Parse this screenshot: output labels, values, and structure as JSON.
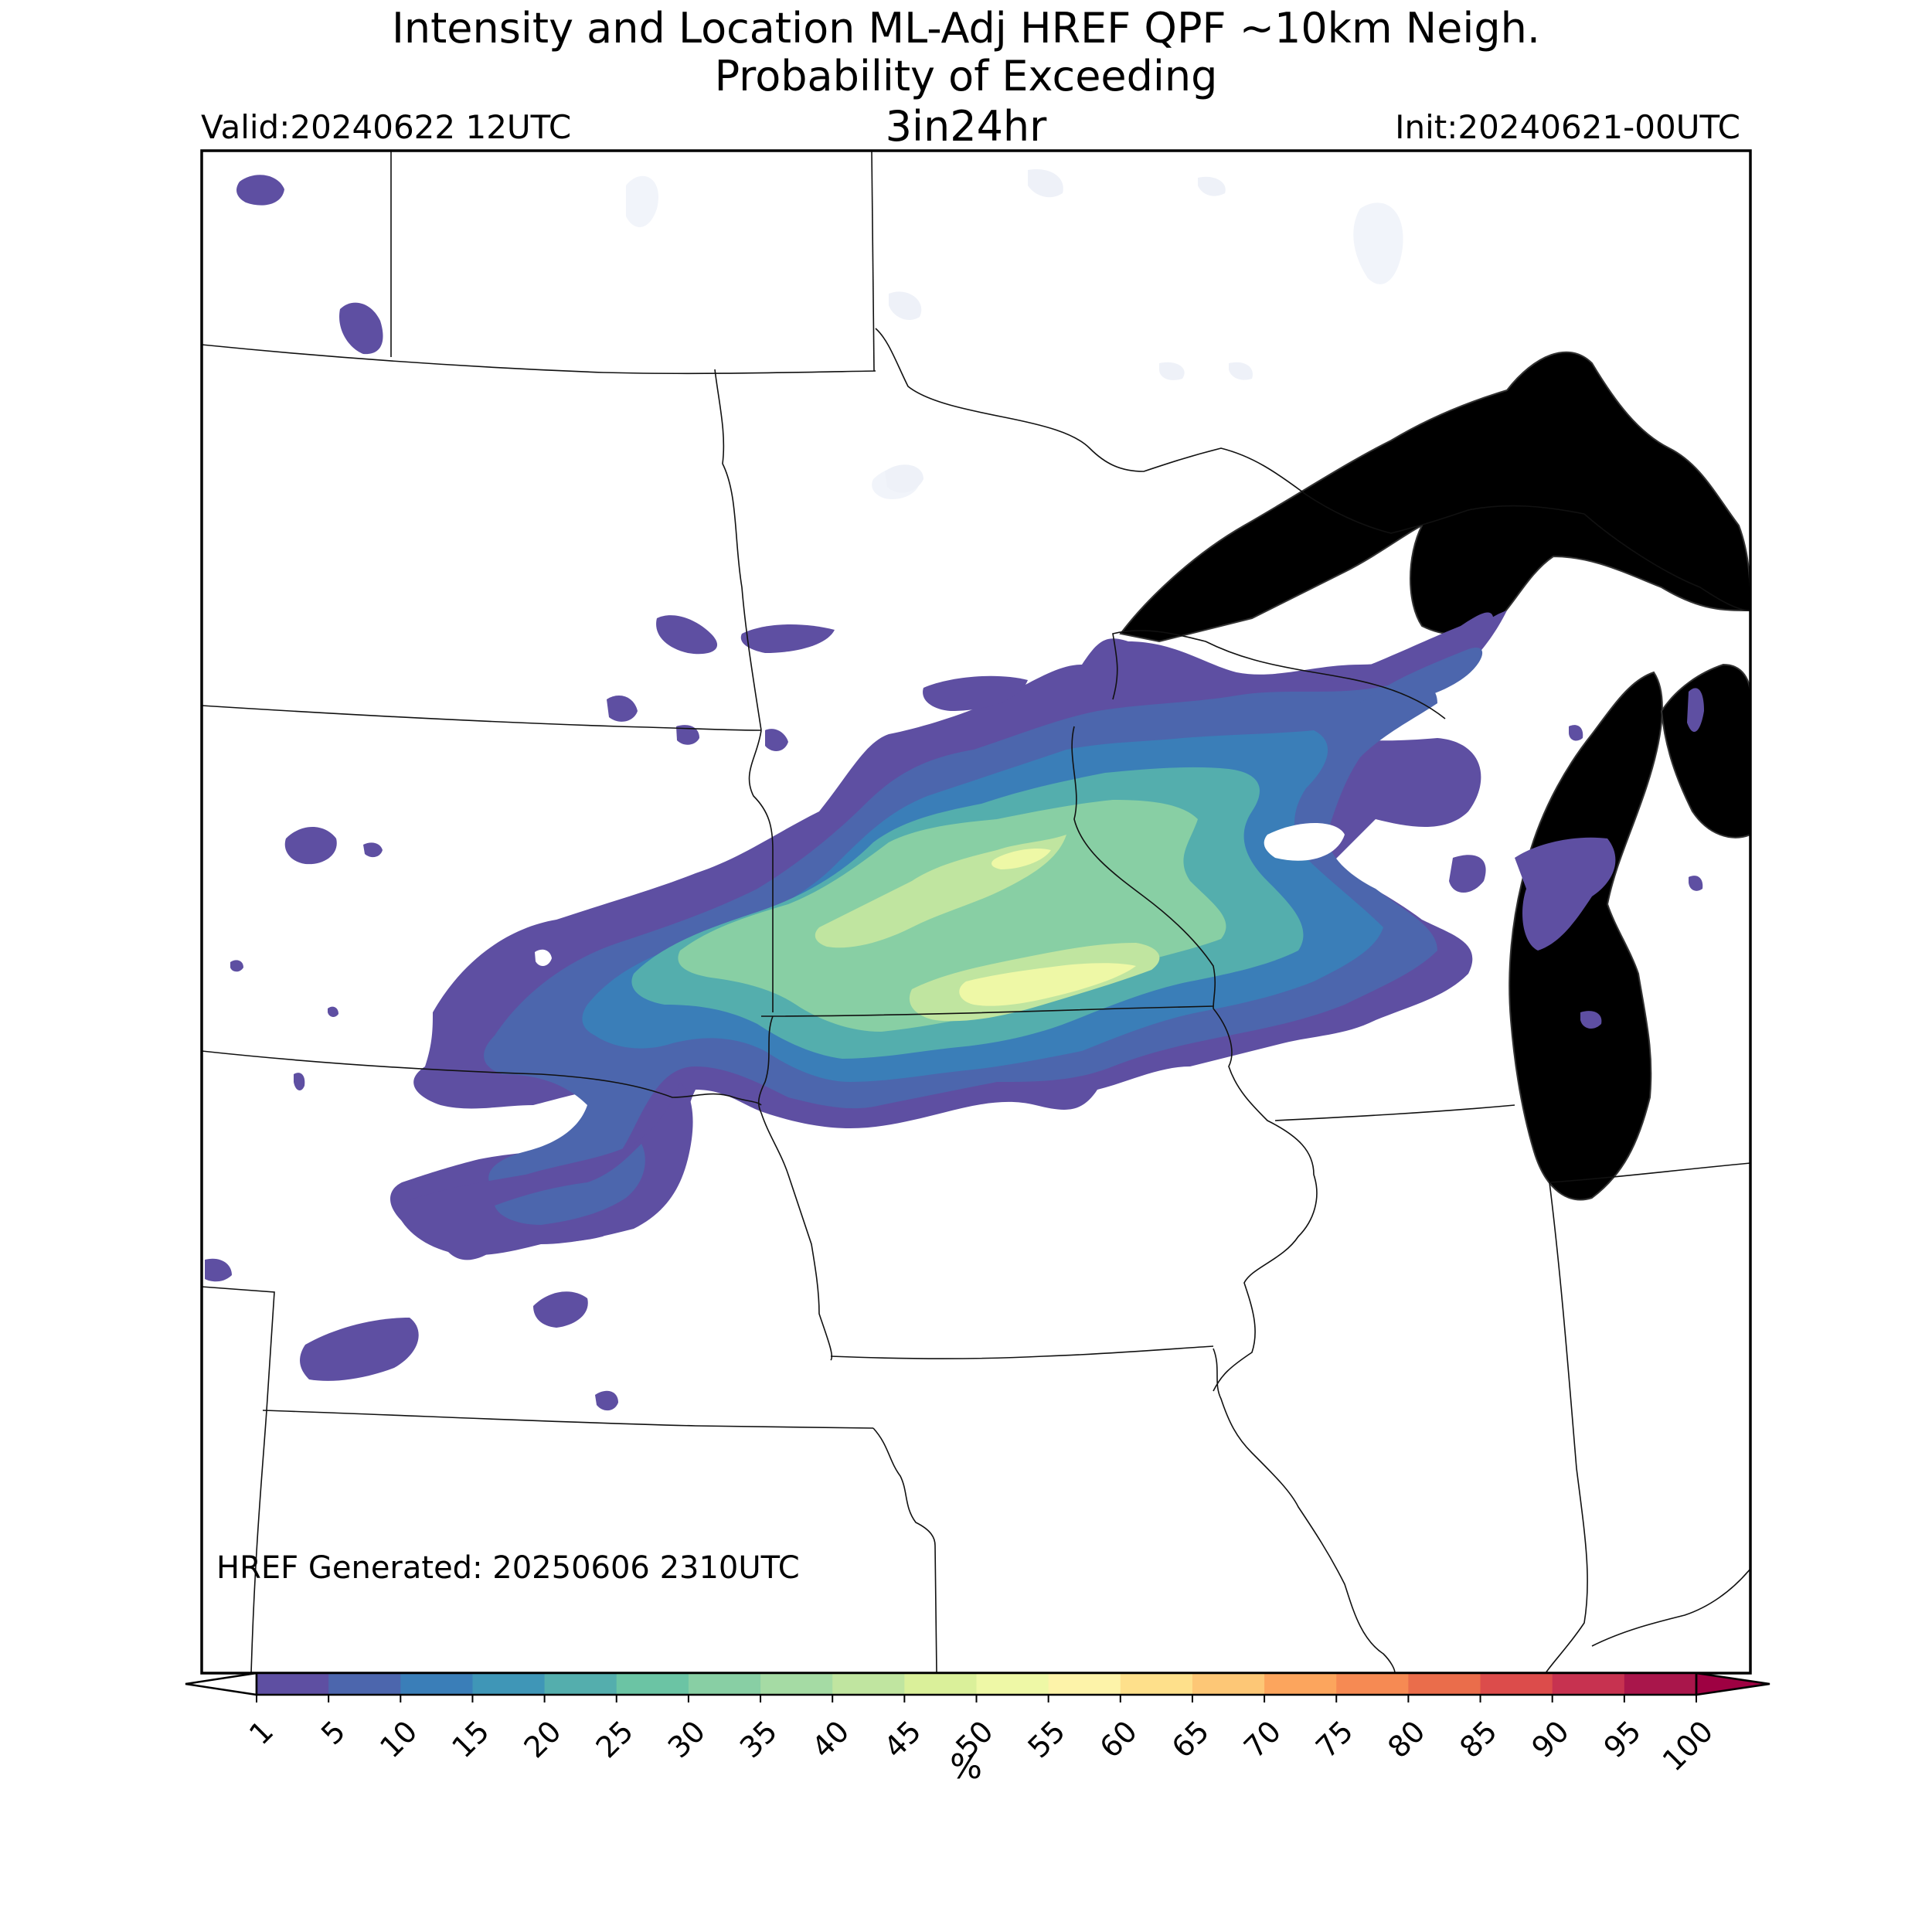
{
  "title": {
    "line1": "Intensity and Location ML-Adj HREF QPF ~10km Neigh.",
    "line2": "Probability of Exceeding",
    "line3": "3in24hr"
  },
  "valid": "Valid:20240622 12UTC",
  "init": "Init:20240621-00UTC",
  "generated": "HREF Generated: 20250606 2310UTC",
  "colorbar": {
    "unit": "%",
    "ticks": [
      "1",
      "5",
      "10",
      "15",
      "20",
      "25",
      "30",
      "35",
      "40",
      "45",
      "50",
      "55",
      "60",
      "65",
      "70",
      "75",
      "80",
      "85",
      "90",
      "95",
      "100"
    ],
    "colors": [
      "#5e4fa2",
      "#4c66ad",
      "#3a7eb8",
      "#3f96b7",
      "#54aead",
      "#6bc4a4",
      "#88cfa4",
      "#a5dba4",
      "#c0e5a0",
      "#daf09a",
      "#eef8a6",
      "#fdf3a9",
      "#fee08b",
      "#fdc776",
      "#fca55d",
      "#f68a53",
      "#ea6d4b",
      "#dc4c4b",
      "#c73250",
      "#a9164b"
    ],
    "under_color": "#ffffff",
    "over_color": "#9e0142"
  },
  "map": {
    "water_color": "#f1f4fa",
    "precip_levels": {
      "low": "#5e4fa2",
      "low2": "#4c66ad",
      "mid": "#3a7eb8",
      "mid2": "#54aead",
      "high": "#88cfa4",
      "higher": "#c0e5a0",
      "peak": "#eef8a6"
    }
  }
}
